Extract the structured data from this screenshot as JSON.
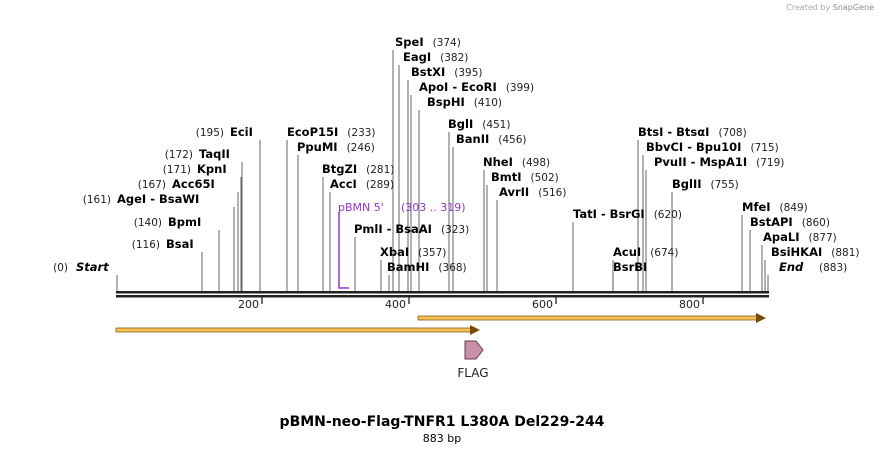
{
  "credit": {
    "prefix": "Created by",
    "brand": "SnapGene"
  },
  "title": "pBMN-neo-Flag-TNFR1 L380A Del229-244",
  "length_label": "883 bp",
  "sequence_length": 883,
  "ruler_ticks": [
    "200",
    "400",
    "600",
    "800"
  ],
  "ends": [
    {
      "name": "Start",
      "pos": "(0)"
    },
    {
      "name": "End",
      "pos": "(883)"
    }
  ],
  "enzymes": [
    {
      "name": "BsaI",
      "pos": "(116)"
    },
    {
      "name": "BpmI",
      "pos": "(140)"
    },
    {
      "name": "AgeI  -  BsaWI",
      "pos": "(161)"
    },
    {
      "name": "Acc65I",
      "pos": "(167)"
    },
    {
      "name": "KpnI",
      "pos": "(171)"
    },
    {
      "name": "TaqII",
      "pos": "(172)"
    },
    {
      "name": "EciI",
      "pos": "(195)"
    },
    {
      "name": "EcoP15I",
      "pos": "(233)"
    },
    {
      "name": "PpuMI",
      "pos": "(246)"
    },
    {
      "name": "BtgZI",
      "pos": "(281)"
    },
    {
      "name": "AccI",
      "pos": "(289)"
    },
    {
      "name": "PmlI  -  BsaAI",
      "pos": "(323)"
    },
    {
      "name": "XbaI",
      "pos": "(357)"
    },
    {
      "name": "BamHI",
      "pos": "(368)"
    },
    {
      "name": "SpeI",
      "pos": "(374)"
    },
    {
      "name": "EagI",
      "pos": "(382)"
    },
    {
      "name": "BstXI",
      "pos": "(395)"
    },
    {
      "name": "ApoI  -  EcoRI",
      "pos": "(399)"
    },
    {
      "name": "BspHI",
      "pos": "(410)"
    },
    {
      "name": "BglI",
      "pos": "(451)"
    },
    {
      "name": "BanII",
      "pos": "(456)"
    },
    {
      "name": "NheI",
      "pos": "(498)"
    },
    {
      "name": "BmtI",
      "pos": "(502)"
    },
    {
      "name": "AvrII",
      "pos": "(516)"
    },
    {
      "name": "TatI  -  BsrGI",
      "pos": "(620)"
    },
    {
      "name": "AcuI",
      "pos": "(674)"
    },
    {
      "name": "BsrBI",
      "pos": ""
    },
    {
      "name": "BtsI  -  BtsαI",
      "pos": "(708)"
    },
    {
      "name": "BbvCI  -  Bpu10I",
      "pos": "(715)"
    },
    {
      "name": "PvuII  -  MspA1I",
      "pos": "(719)"
    },
    {
      "name": "BglII",
      "pos": "(755)"
    },
    {
      "name": "MfeI",
      "pos": "(849)"
    },
    {
      "name": "BstAPI",
      "pos": "(860)"
    },
    {
      "name": "ApaLI",
      "pos": "(877)"
    },
    {
      "name": "BsiHKAI",
      "pos": "(881)"
    }
  ],
  "primer": {
    "name": "pBMN 5'",
    "range": "(303 .. 319)"
  },
  "feature": {
    "name": "FLAG"
  },
  "colors": {
    "backbone": "#222222",
    "primer": "#9933cc",
    "orf_fill": "#f5c25a",
    "orf_stroke": "#7a4a00",
    "feature_fill": "#c890a8",
    "feature_stroke": "#6a3a50"
  }
}
